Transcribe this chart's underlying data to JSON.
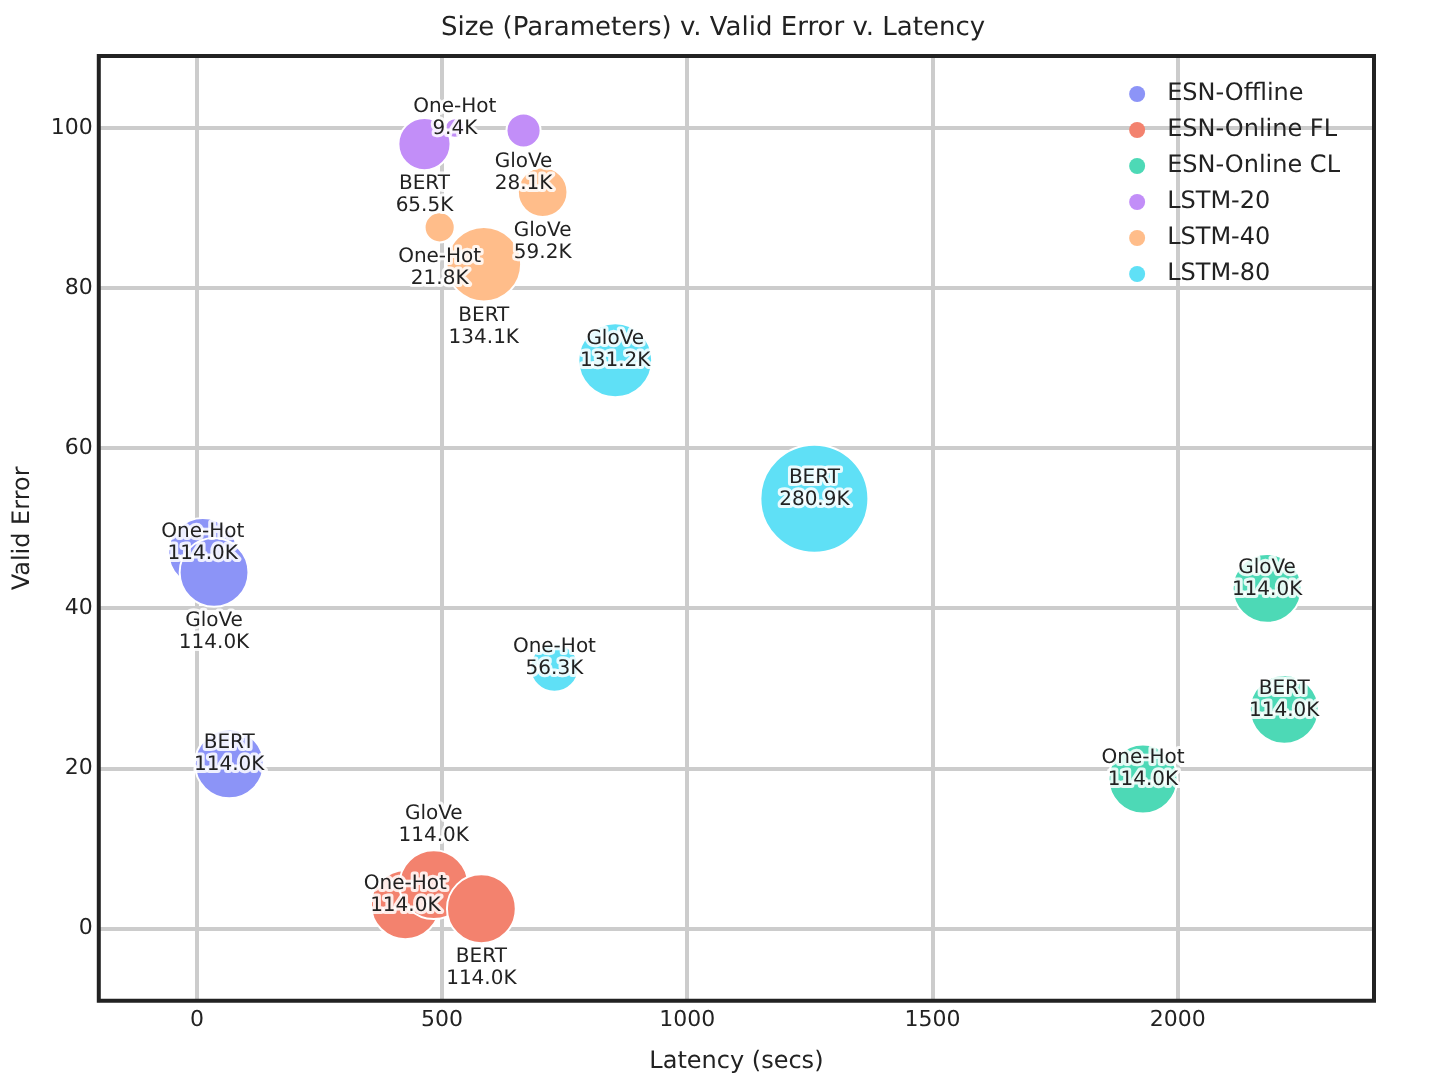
{
  "chart_data": {
    "type": "bubble",
    "title": "Size (Parameters) v. Valid Error v. Latency",
    "xlabel": "Latency (secs)",
    "ylabel": "Valid Error",
    "xlim": [
      -200,
      2400
    ],
    "xticks": [
      0,
      500,
      1000,
      1500,
      2000
    ],
    "ylim": [
      -9,
      109
    ],
    "yticks": [
      0,
      20,
      40,
      60,
      80,
      100
    ],
    "grid": true,
    "legend": "top right",
    "series": [
      {
        "name": "ESN-Offline",
        "color": "#8c94f7",
        "x": [
          12,
          35,
          66
        ],
        "values": [
          47,
          44.5,
          20.6
        ],
        "sizes": [
          0.406,
          0.406,
          0.406
        ]
      },
      {
        "name": "ESN-Online FL",
        "color": "#f3826e",
        "x": [
          425,
          483,
          580
        ],
        "values": [
          3,
          5.5,
          2.5
        ],
        "sizes": [
          0.406,
          0.406,
          0.406
        ]
      },
      {
        "name": "ESN-Online CL",
        "color": "#4dd9b6",
        "x": [
          1929,
          2182,
          2217
        ],
        "values": [
          18.7,
          42.5,
          27.4
        ],
        "sizes": [
          0.406,
          0.406,
          0.406
        ]
      },
      {
        "name": "LSTM-20",
        "color": "#c28ef8",
        "x": [
          526,
          666,
          464
        ],
        "values": [
          100,
          99.7,
          98
        ],
        "sizes": [
          0.033,
          0.1,
          0.233
        ]
      },
      {
        "name": "LSTM-40",
        "color": "#ffbd8a",
        "x": [
          495,
          705,
          585
        ],
        "values": [
          87.6,
          92,
          83
        ],
        "sizes": [
          0.078,
          0.211,
          0.477
        ]
      },
      {
        "name": "LSTM-80",
        "color": "#5fe0f6",
        "x": [
          729,
          853,
          1259
        ],
        "values": [
          32.6,
          71,
          53.7
        ],
        "sizes": [
          0.2,
          0.467,
          1
        ]
      }
    ],
    "annotations": [
      {
        "text": "One-Hot\n114.0K",
        "x": 12,
        "y": 47
      },
      {
        "text": "GloVe\n114.0K",
        "x": 35,
        "y": 44.5
      },
      {
        "text": "BERT\n114.0K",
        "x": 66,
        "y": 20.6
      },
      {
        "text": "One-Hot\n114.0K",
        "x": 425,
        "y": 3
      },
      {
        "text": "GloVe\n114.0K",
        "x": 483,
        "y": 5.5
      },
      {
        "text": "BERT\n114.0K",
        "x": 580,
        "y": 2.5
      },
      {
        "text": "One-Hot\n114.0K",
        "x": 1929,
        "y": 18.7
      },
      {
        "text": "GloVe\n114.0K",
        "x": 2182,
        "y": 42.5
      },
      {
        "text": "BERT\n114.0K",
        "x": 2217,
        "y": 27.4
      },
      {
        "text": "One-Hot\n9.4K",
        "x": 526,
        "y": 100
      },
      {
        "text": "GloVe\n28.1K",
        "x": 666,
        "y": 99.7
      },
      {
        "text": "BERT\n65.5K",
        "x": 464,
        "y": 98
      },
      {
        "text": "One-Hot\n21.8K",
        "x": 495,
        "y": 87.6
      },
      {
        "text": "GloVe\n59.2K",
        "x": 705,
        "y": 92
      },
      {
        "text": "BERT\n134.1K",
        "x": 585,
        "y": 83
      },
      {
        "text": "One-Hot\n56.3K",
        "x": 729,
        "y": 32.6
      },
      {
        "text": "GloVe\n131.2K",
        "x": 853,
        "y": 71
      },
      {
        "text": "BERT\n280.9K",
        "x": 1259,
        "y": 53.7
      }
    ]
  }
}
